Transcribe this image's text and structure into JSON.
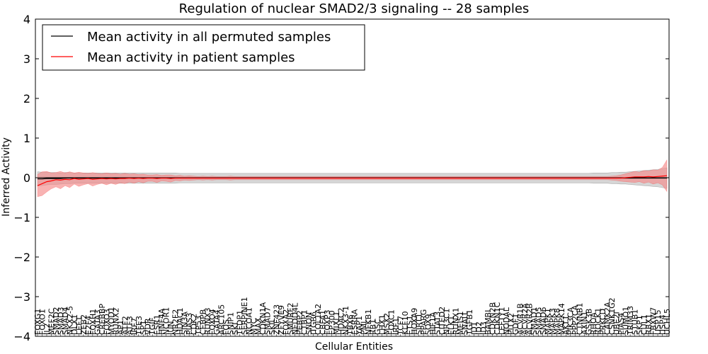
{
  "chart_data": {
    "type": "line",
    "title": "Regulation of nuclear SMAD2/3 signaling -- 28 samples",
    "xlabel": "Cellular Entities",
    "ylabel": "Inferred Activity",
    "ylim": [
      -4,
      4
    ],
    "yticks": [
      -4,
      -3,
      -2,
      -1,
      0,
      1,
      2,
      3,
      4
    ],
    "ytick_labels": [
      "−4",
      "−3",
      "−2",
      "−1",
      "0",
      "1",
      "2",
      "3",
      "4"
    ],
    "legend": {
      "placement": "top-left",
      "entries": [
        {
          "label": "Mean activity in all permuted samples",
          "color": "#000000"
        },
        {
          "label": "Mean activity in patient samples",
          "color": "#ff0000"
        }
      ]
    },
    "colors": {
      "permuted_line": "#000000",
      "permuted_band": "#bbbbbb",
      "patient_line": "#ff0000",
      "patient_band": "#f58a8a"
    },
    "categories": [
      "FOXG1",
      "FOXO1",
      "IL2",
      "MEF2C",
      "SMAD2",
      "SMAD3",
      "SMAD4",
      "NKX2-5",
      "DLX1",
      "LEF1",
      "ZEB2",
      "E2F4",
      "FOXH1",
      "GATA3",
      "CREBBP",
      "FOXO3",
      "MYOD1",
      "RUNX2",
      "AP1",
      "ATF2",
      "ATF3",
      "IRF7",
      "TFE3",
      "SP1",
      "VDR",
      "TGIF",
      "ESR1",
      "HNF4A",
      "NCOR1",
      "JUN",
      "NR2F2",
      "HDAC1",
      "SIN3A",
      "PIAS3",
      "CDK2",
      "TP53",
      "CEBPB",
      "RUNX3",
      "FOXO4",
      "GATA4",
      "ARC105",
      "FOS",
      "SNIP1",
      "SKI",
      "TFDP1",
      "SERPINE1",
      "NCOA1",
      "MYC",
      "MAX",
      "CDKN1A",
      "SMAD7",
      "SKIL",
      "ZNF423",
      "ZFYVE9",
      "FOXA2",
      "SMURF2",
      "NEDD4L",
      "PEBP2",
      "CTBP1",
      "SNON",
      "ITGB6",
      "COL1A2",
      "CBFA1",
      "FOXP3",
      "EP300",
      "MIXL1",
      "HDAC2",
      "NKX3-1",
      "TBX6",
      "ESRRA",
      "YAP1",
      "PML",
      "NFKB1",
      "RB1",
      "GSC",
      "LHX1",
      "MSX2",
      "FOXC1",
      "IRF1",
      "TCF7",
      "KLF10",
      "ETS1",
      "HOXA9",
      "SIRT1",
      "PPARG",
      "SOX9",
      "HIF1A",
      "STAT3",
      "CITED2",
      "NR3C1",
      "ELK1",
      "RUNX1",
      "MEIS1",
      "SNAI1",
      "TGFB1",
      "ID1",
      "ID2",
      "ID3",
      "BAMBI",
      "CDKN2B",
      "CDKN1C",
      "LEFTY1",
      "NODAL",
      "PITX2",
      "GDF1",
      "ACVR1B",
      "ACVR2A",
      "ACVR2B",
      "SMAD1",
      "SMAD5",
      "SMAD6",
      "MAPK1",
      "MAPK3",
      "MAPK8",
      "MAPK14",
      "AKT1",
      "PIK3CA",
      "PPP2CA",
      "CTNNB1",
      "AXIN1",
      "GSK3B",
      "RHOA",
      "ROCK1",
      "PRKCD",
      "CAMK2A",
      "CSNK1G2",
      "UBE2I",
      "PIAS4",
      "SUMO1",
      "TRIM33",
      "STUB1",
      "SKP1",
      "CUL1",
      "RBX1",
      "FBXW7",
      "USP15",
      "USP4",
      "UCHL5"
    ],
    "series": [
      {
        "name": "Mean activity in all permuted samples",
        "values": [
          -0.03,
          -0.03,
          -0.02,
          -0.02,
          -0.02,
          -0.02,
          -0.01,
          -0.01,
          -0.01,
          -0.01,
          -0.01,
          -0.01,
          -0.01,
          -0.01,
          -0.01,
          -0.01,
          -0.01,
          -0.01,
          -0.01,
          -0.01,
          -0.01,
          -0.01,
          -0.01,
          -0.01,
          -0.01,
          -0.01,
          -0.01,
          -0.01,
          -0.01,
          -0.01,
          -0.01,
          -0.01,
          -0.01,
          -0.01,
          -0.01,
          -0.01,
          -0.01,
          -0.01,
          -0.01,
          -0.01,
          -0.01,
          -0.01,
          -0.01,
          -0.01,
          -0.01,
          -0.01,
          -0.01,
          -0.01,
          -0.01,
          -0.01,
          -0.01,
          -0.01,
          -0.01,
          -0.01,
          -0.01,
          -0.01,
          -0.01,
          -0.01,
          -0.01,
          -0.01,
          -0.01,
          -0.01,
          -0.01,
          -0.01,
          -0.01,
          -0.01,
          -0.01,
          -0.01,
          -0.01,
          -0.01,
          -0.01,
          -0.01,
          -0.01,
          -0.01,
          -0.01,
          -0.01,
          -0.01,
          -0.01,
          -0.01,
          -0.01,
          -0.01,
          -0.01,
          -0.01,
          -0.01,
          -0.01,
          -0.01,
          -0.01,
          -0.01,
          -0.01,
          -0.01,
          -0.01,
          -0.01,
          -0.01,
          -0.01,
          -0.01,
          -0.01,
          -0.01,
          -0.01,
          -0.01,
          -0.01,
          -0.01,
          -0.01,
          -0.01,
          -0.01,
          -0.01,
          -0.01,
          -0.01,
          -0.01,
          -0.01,
          -0.01,
          -0.01,
          -0.01,
          -0.01,
          -0.01,
          -0.01,
          -0.01,
          -0.01,
          -0.01,
          -0.01,
          -0.01,
          -0.01,
          -0.01,
          -0.01,
          -0.01,
          -0.01,
          -0.01,
          -0.01,
          -0.01,
          -0.01,
          -0.01,
          -0.01,
          -0.01,
          -0.01,
          -0.01,
          -0.01,
          -0.01,
          -0.01,
          -0.01
        ],
        "spread": [
          0.18,
          0.17,
          0.16,
          0.15,
          0.15,
          0.14,
          0.14,
          0.14,
          0.13,
          0.13,
          0.13,
          0.13,
          0.13,
          0.13,
          0.13,
          0.13,
          0.13,
          0.13,
          0.13,
          0.13,
          0.13,
          0.13,
          0.13,
          0.13,
          0.13,
          0.13,
          0.13,
          0.13,
          0.13,
          0.13,
          0.13,
          0.12,
          0.12,
          0.12,
          0.12,
          0.12,
          0.12,
          0.12,
          0.12,
          0.12,
          0.12,
          0.12,
          0.12,
          0.12,
          0.12,
          0.12,
          0.12,
          0.12,
          0.12,
          0.12,
          0.12,
          0.12,
          0.12,
          0.12,
          0.12,
          0.12,
          0.12,
          0.12,
          0.12,
          0.12,
          0.12,
          0.12,
          0.12,
          0.12,
          0.12,
          0.12,
          0.12,
          0.12,
          0.12,
          0.12,
          0.12,
          0.12,
          0.12,
          0.12,
          0.12,
          0.12,
          0.12,
          0.12,
          0.12,
          0.12,
          0.12,
          0.12,
          0.12,
          0.12,
          0.12,
          0.12,
          0.12,
          0.12,
          0.12,
          0.12,
          0.12,
          0.12,
          0.12,
          0.12,
          0.12,
          0.12,
          0.12,
          0.12,
          0.12,
          0.12,
          0.12,
          0.12,
          0.12,
          0.12,
          0.12,
          0.12,
          0.12,
          0.12,
          0.12,
          0.12,
          0.12,
          0.12,
          0.12,
          0.12,
          0.12,
          0.12,
          0.12,
          0.12,
          0.12,
          0.12,
          0.12,
          0.13,
          0.13,
          0.13,
          0.13,
          0.14,
          0.14,
          0.15,
          0.15,
          0.16,
          0.17,
          0.18,
          0.19,
          0.2,
          0.21,
          0.22,
          0.24,
          0.26
        ]
      },
      {
        "name": "Mean activity in patient samples",
        "values": [
          -0.2,
          -0.15,
          -0.1,
          -0.08,
          -0.05,
          -0.06,
          -0.04,
          -0.05,
          -0.02,
          -0.04,
          -0.03,
          -0.02,
          -0.04,
          -0.03,
          -0.02,
          -0.03,
          -0.02,
          -0.03,
          -0.02,
          -0.02,
          -0.01,
          -0.02,
          -0.01,
          -0.02,
          -0.01,
          -0.01,
          -0.02,
          -0.01,
          -0.01,
          -0.02,
          -0.01,
          -0.01,
          -0.01,
          -0.01,
          -0.01,
          -0.01,
          -0.01,
          -0.01,
          -0.01,
          -0.01,
          -0.01,
          -0.01,
          -0.01,
          -0.01,
          -0.01,
          -0.01,
          -0.01,
          -0.01,
          -0.01,
          -0.01,
          -0.01,
          -0.01,
          -0.01,
          -0.01,
          -0.01,
          -0.01,
          -0.01,
          -0.01,
          -0.01,
          -0.01,
          -0.01,
          -0.01,
          -0.01,
          -0.01,
          -0.01,
          -0.01,
          -0.01,
          -0.01,
          -0.01,
          -0.01,
          -0.01,
          -0.01,
          -0.01,
          -0.01,
          -0.01,
          -0.01,
          -0.01,
          -0.01,
          -0.01,
          -0.01,
          -0.01,
          -0.01,
          -0.01,
          -0.01,
          -0.01,
          -0.01,
          -0.01,
          -0.01,
          -0.01,
          -0.01,
          -0.01,
          -0.01,
          -0.01,
          -0.01,
          -0.01,
          -0.01,
          -0.01,
          -0.01,
          -0.01,
          -0.01,
          -0.01,
          -0.01,
          -0.01,
          -0.01,
          -0.01,
          -0.01,
          -0.01,
          -0.01,
          -0.01,
          -0.01,
          -0.01,
          -0.01,
          -0.01,
          -0.01,
          -0.01,
          -0.01,
          -0.01,
          -0.01,
          -0.01,
          -0.01,
          -0.01,
          -0.01,
          -0.01,
          -0.01,
          -0.01,
          -0.01,
          -0.01,
          -0.01,
          0.0,
          0.01,
          0.02,
          0.02,
          0.02,
          0.03,
          0.02,
          0.03,
          0.04,
          0.05
        ],
        "spread": [
          0.28,
          0.3,
          0.26,
          0.2,
          0.18,
          0.22,
          0.16,
          0.2,
          0.14,
          0.18,
          0.15,
          0.13,
          0.17,
          0.14,
          0.12,
          0.15,
          0.12,
          0.14,
          0.11,
          0.13,
          0.1,
          0.12,
          0.09,
          0.11,
          0.08,
          0.08,
          0.1,
          0.07,
          0.08,
          0.09,
          0.06,
          0.07,
          0.05,
          0.06,
          0.05,
          0.04,
          0.05,
          0.04,
          0.05,
          0.04,
          0.04,
          0.04,
          0.05,
          0.04,
          0.04,
          0.04,
          0.04,
          0.04,
          0.04,
          0.04,
          0.04,
          0.04,
          0.04,
          0.04,
          0.04,
          0.04,
          0.04,
          0.04,
          0.04,
          0.04,
          0.04,
          0.04,
          0.04,
          0.04,
          0.04,
          0.04,
          0.04,
          0.04,
          0.04,
          0.04,
          0.04,
          0.04,
          0.04,
          0.04,
          0.04,
          0.04,
          0.04,
          0.04,
          0.04,
          0.04,
          0.04,
          0.04,
          0.04,
          0.04,
          0.04,
          0.04,
          0.04,
          0.04,
          0.04,
          0.04,
          0.04,
          0.04,
          0.04,
          0.04,
          0.04,
          0.04,
          0.04,
          0.04,
          0.04,
          0.04,
          0.04,
          0.04,
          0.04,
          0.04,
          0.04,
          0.04,
          0.04,
          0.04,
          0.04,
          0.04,
          0.04,
          0.04,
          0.04,
          0.04,
          0.04,
          0.04,
          0.04,
          0.04,
          0.04,
          0.04,
          0.04,
          0.04,
          0.04,
          0.04,
          0.04,
          0.05,
          0.06,
          0.08,
          0.1,
          0.12,
          0.14,
          0.12,
          0.16,
          0.14,
          0.18,
          0.16,
          0.22,
          0.4
        ]
      }
    ]
  }
}
